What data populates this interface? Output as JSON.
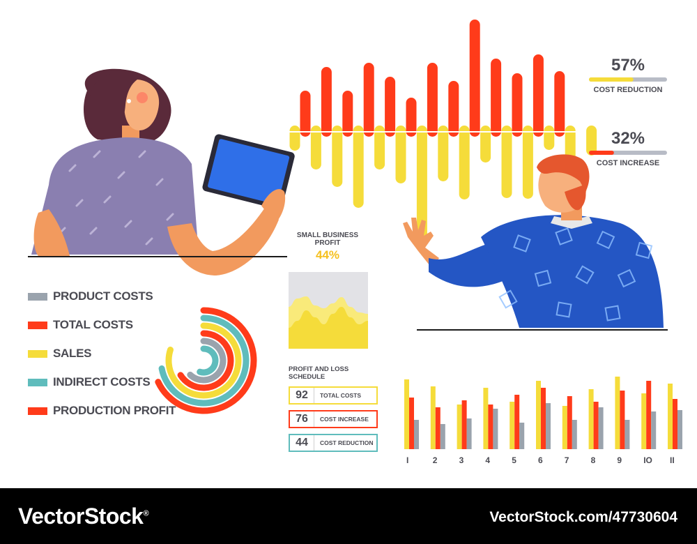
{
  "colors": {
    "red": "#ff3b1a",
    "yellow": "#f5dc3a",
    "gray": "#9aa3ad",
    "teal": "#5fbcbc",
    "text": "#4a4a52",
    "skin": "#f29a5e",
    "purple_shirt": "#8a7fb0",
    "blue_shirt": "#2456c4",
    "hair_dark": "#5a2a3a",
    "hair_red": "#e5572e"
  },
  "illustrations": {
    "woman": {
      "hair": "dark-wavy",
      "shirt": "purple-patterned",
      "holds": "tablet"
    },
    "man": {
      "hair": "red",
      "shirt": "blue-patterned",
      "gesture": "raised-hand"
    }
  },
  "legend": [
    {
      "label": "PRODUCT COSTS",
      "color": "#9aa3ad"
    },
    {
      "label": "TOTAL COSTS",
      "color": "#ff3b1a"
    },
    {
      "label": "SALES",
      "color": "#f5dc3a"
    },
    {
      "label": "INDIRECT COSTS",
      "color": "#5fbcbc"
    },
    {
      "label": "PRODUCTION PROFIT",
      "color": "#ff3b1a"
    }
  ],
  "stats": {
    "cost_reduction": {
      "value": "57%",
      "label": "COST REDUCTION",
      "fraction": 0.57
    },
    "cost_increase": {
      "value": "32%",
      "label": "COST INCREASE",
      "fraction": 0.32
    }
  },
  "small_business": {
    "title_line1": "SMALL BUSINESS",
    "title_line2": "PROFIT",
    "value": "44%"
  },
  "pl_schedule": {
    "title": "PROFIT AND LOSS SCHEDULE",
    "rows": [
      {
        "num": "92",
        "label": "TOTAL COSTS",
        "color": "#f5dc3a"
      },
      {
        "num": "76",
        "label": "COST INCREASE",
        "color": "#ff3b1a"
      },
      {
        "num": "44",
        "label": "COST REDUCTION",
        "color": "#5fbcbc"
      }
    ]
  },
  "chart_data": [
    {
      "type": "bar",
      "description": "top diverging bar chart, red bars up and yellow bars down from a baseline",
      "series": [
        {
          "color": "#ff3b1a",
          "values": [
            58,
            92,
            58,
            98,
            78,
            48,
            98,
            72,
            160,
            104,
            83,
            110,
            86
          ]
        },
        {
          "color": "#f5dc3a",
          "values": [
            -28,
            -55,
            -80,
            -110,
            -55,
            -75,
            -160,
            -72,
            -98,
            -45,
            -96,
            -97,
            -27,
            -44,
            -35
          ]
        }
      ]
    },
    {
      "type": "bar",
      "description": "grouped bar chart with yellow, red and gray bars",
      "categories": [
        "I",
        "2",
        "3",
        "4",
        "5",
        "6",
        "7",
        "8",
        "9",
        "IO",
        "II"
      ],
      "series": [
        {
          "color": "#f5dc3a",
          "values": [
            100,
            90,
            64,
            88,
            68,
            98,
            62,
            86,
            104,
            80,
            94
          ]
        },
        {
          "color": "#ff3b1a",
          "values": [
            74,
            60,
            70,
            64,
            78,
            88,
            76,
            68,
            84,
            98,
            72
          ]
        },
        {
          "color": "#9aa3ad",
          "values": [
            42,
            36,
            44,
            58,
            38,
            66,
            42,
            60,
            42,
            54,
            56
          ]
        }
      ],
      "ylim": [
        0,
        110
      ]
    },
    {
      "type": "pie",
      "description": "concentric arc (radial) chart",
      "series": [
        {
          "color": "#ff3b1a",
          "value": 0.68
        },
        {
          "color": "#5fbcbc",
          "value": 0.72
        },
        {
          "color": "#f5dc3a",
          "value": 0.8
        },
        {
          "color": "#ff3b1a",
          "value": 0.66
        },
        {
          "color": "#9aa3ad",
          "value": 0.62
        },
        {
          "color": "#5fbcbc",
          "value": 0.55
        }
      ]
    },
    {
      "type": "area",
      "description": "small area chart for small business profit",
      "series": [
        {
          "color": "#f5dc3a",
          "values": [
            30,
            40,
            55,
            45,
            35,
            50,
            60,
            45,
            35,
            40
          ]
        },
        {
          "color": "#f9ea7a",
          "values": [
            60,
            72,
            75,
            62,
            58,
            65,
            74,
            60,
            52,
            50
          ]
        }
      ]
    }
  ],
  "footer": {
    "brand": "VectorStock",
    "registered": "®",
    "image_id": "VectorStock.com/47730604"
  }
}
